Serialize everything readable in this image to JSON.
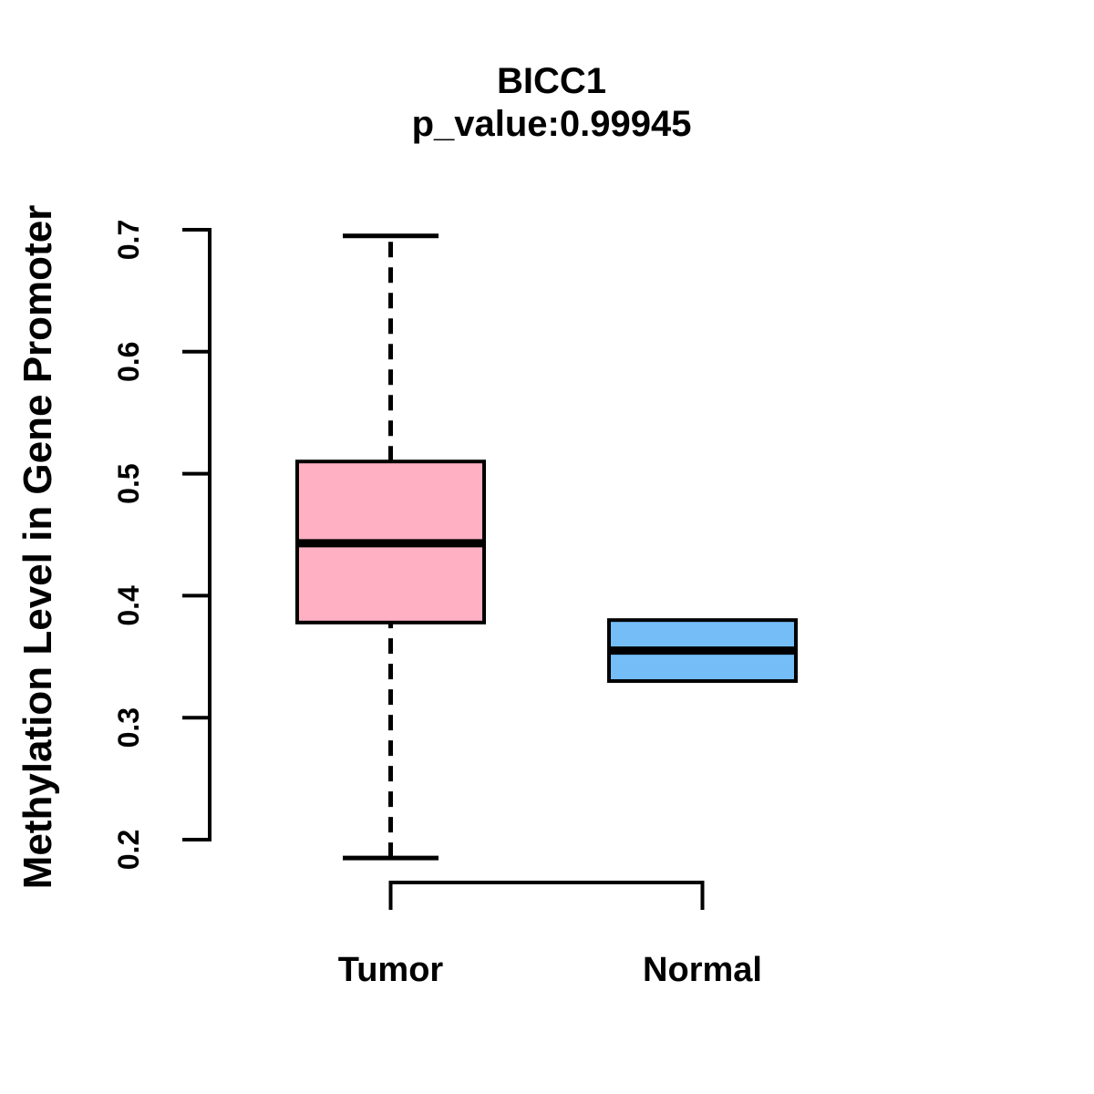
{
  "figure": {
    "title": "BICC1",
    "subtitle": "p_value:0.99945"
  },
  "chart_data": {
    "type": "boxplot",
    "title": "BICC1",
    "subtitle": "p_value:0.99945",
    "ylabel": "Methylation Level in Gene Promoter",
    "xlabel": "",
    "ylim": [
      0.2,
      0.7
    ],
    "yticks": [
      0.2,
      0.3,
      0.4,
      0.5,
      0.6,
      0.7
    ],
    "categories": [
      "Tumor",
      "Normal"
    ],
    "series": [
      {
        "name": "Tumor",
        "whisker_low": 0.185,
        "q1": 0.378,
        "median": 0.443,
        "q3": 0.51,
        "whisker_high": 0.695,
        "color": "#ffb1c3"
      },
      {
        "name": "Normal",
        "whisker_low": null,
        "q1": 0.33,
        "median": 0.355,
        "q3": 0.38,
        "whisker_high": null,
        "color": "#74bdf7"
      }
    ],
    "grid": false,
    "legend": "none",
    "background": "#ffffff",
    "stroke_color": "#000000"
  }
}
